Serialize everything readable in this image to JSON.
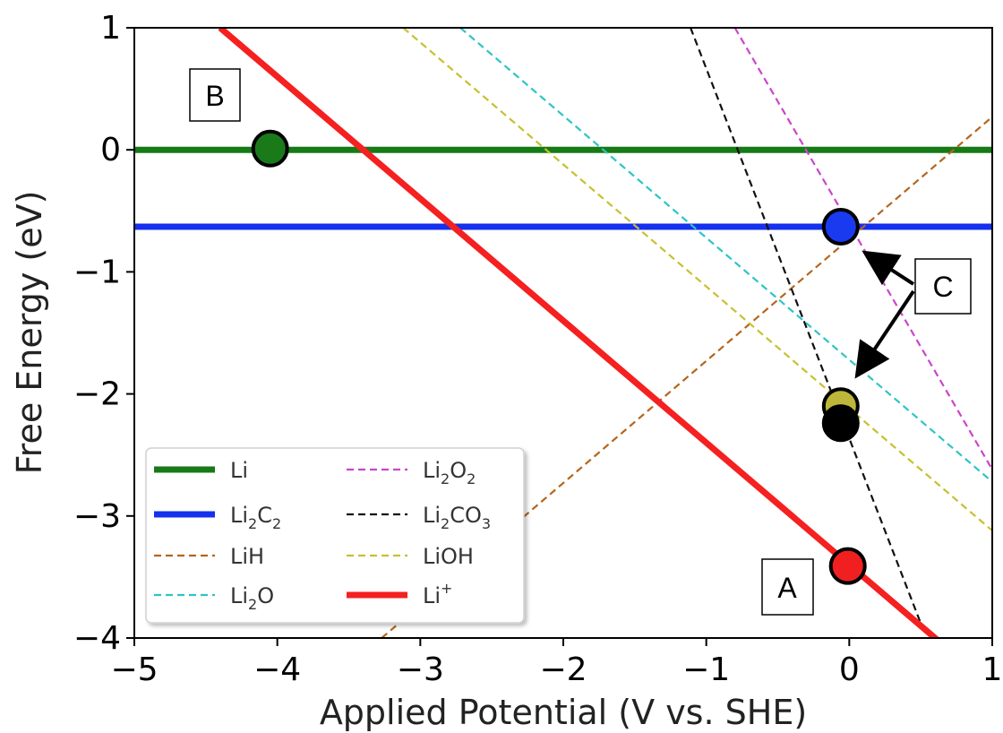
{
  "chart_data": {
    "type": "line",
    "title": "",
    "xlabel": "Applied Potential (V vs. SHE)",
    "ylabel": "Free Energy (eV)",
    "xlim": [
      -5,
      1
    ],
    "ylim": [
      -4,
      1
    ],
    "xticks": [
      -5,
      -4,
      -3,
      -2,
      -1,
      0,
      1
    ],
    "yticks": [
      1,
      0,
      -1,
      -2,
      -3,
      -4
    ],
    "xtick_labels": [
      "−5",
      "−4",
      "−3",
      "−2",
      "−1",
      "0",
      "1"
    ],
    "ytick_labels": [
      "1",
      "0",
      "−1",
      "−2",
      "−3",
      "−4"
    ],
    "grid": false,
    "legend_placement": "lower-left",
    "series": [
      {
        "name": "Li",
        "label_parts": [
          [
            "Li",
            false
          ]
        ],
        "style": "solid",
        "color": "#167a16",
        "x": [
          -5,
          1
        ],
        "y": [
          0,
          0
        ]
      },
      {
        "name": "Li2C2",
        "label_parts": [
          [
            "Li",
            false
          ],
          [
            "2",
            true
          ],
          [
            "C",
            false
          ],
          [
            "2",
            true
          ]
        ],
        "style": "solid",
        "color": "#1530ee",
        "x": [
          -5,
          1
        ],
        "y": [
          -0.63,
          -0.63
        ]
      },
      {
        "name": "LiH",
        "label_parts": [
          [
            "LiH",
            false
          ]
        ],
        "style": "dashed",
        "color": "#b5651d",
        "x": [
          -3.27,
          1
        ],
        "y": [
          -4,
          0.27
        ]
      },
      {
        "name": "Li2O",
        "label_parts": [
          [
            "Li",
            false
          ],
          [
            "2",
            true
          ],
          [
            "O",
            false
          ]
        ],
        "style": "dashed",
        "color": "#2ec4c4",
        "x": [
          -2.72,
          1
        ],
        "y": [
          1,
          -2.72
        ]
      },
      {
        "name": "Li2O2",
        "label_parts": [
          [
            "Li",
            false
          ],
          [
            "2",
            true
          ],
          [
            "O",
            false
          ],
          [
            "2",
            true
          ]
        ],
        "style": "dashed",
        "color": "#cc44cc",
        "x": [
          -0.8,
          1
        ],
        "y": [
          1,
          -2.62
        ]
      },
      {
        "name": "Li2CO3",
        "label_parts": [
          [
            "Li",
            false
          ],
          [
            "2",
            true
          ],
          [
            "CO",
            false
          ],
          [
            "3",
            true
          ]
        ],
        "style": "dashed",
        "color": "#111111",
        "x": [
          -1.11,
          0.5
        ],
        "y": [
          1,
          -3.88
        ]
      },
      {
        "name": "LiOH",
        "label_parts": [
          [
            "LiOH",
            false
          ]
        ],
        "style": "dashed",
        "color": "#c8c030",
        "x": [
          -3.12,
          1
        ],
        "y": [
          1,
          -3.12
        ]
      },
      {
        "name": "Li+",
        "label_parts": [
          [
            "Li",
            false
          ],
          [
            "+",
            "sup"
          ]
        ],
        "style": "solid",
        "color": "#f52020",
        "x": [
          -4.4,
          0.62
        ],
        "y": [
          1,
          -4.02
        ]
      }
    ],
    "points": [
      {
        "x": -4.05,
        "y": 0.01,
        "color": "#1a7a1a"
      },
      {
        "x": -0.06,
        "y": -0.63,
        "color": "#1a3af0"
      },
      {
        "x": -0.06,
        "y": -2.1,
        "color": "#bdb63a"
      },
      {
        "x": -0.06,
        "y": -2.24,
        "color": "#000000"
      },
      {
        "x": -0.01,
        "y": -3.41,
        "color": "#f02020"
      }
    ],
    "annotations": {
      "A": "A",
      "B": "B",
      "C": "C"
    }
  }
}
